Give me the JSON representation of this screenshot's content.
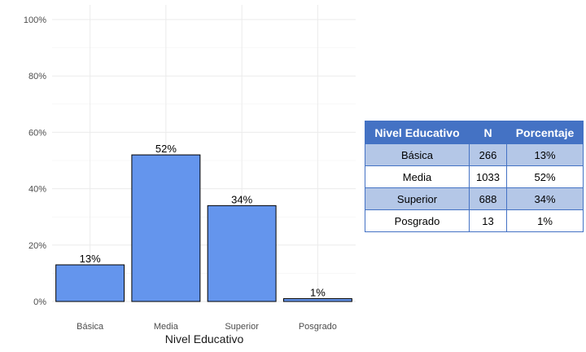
{
  "chart_data": {
    "type": "bar",
    "categories": [
      "Básica",
      "Media",
      "Superior",
      "Posgrado"
    ],
    "values": [
      13,
      52,
      34,
      1
    ],
    "data_labels": [
      "13%",
      "52%",
      "34%",
      "1%"
    ],
    "xlabel": "Nivel Educativo",
    "ylabel": "",
    "ylim": [
      0,
      100
    ],
    "y_ticks": [
      0,
      20,
      40,
      60,
      80,
      100
    ],
    "y_tick_labels": [
      "0%",
      "20%",
      "40%",
      "60%",
      "80%",
      "100%"
    ],
    "grid": true,
    "colors": {
      "bar_fill": "#6495ed",
      "bar_stroke": "#000000",
      "grid": "#ebebeb"
    }
  },
  "table": {
    "headers": [
      "Nivel Educativo",
      "N",
      "Porcentaje"
    ],
    "rows": [
      [
        "Básica",
        "266",
        "13%"
      ],
      [
        "Media",
        "1033",
        "52%"
      ],
      [
        "Superior",
        "688",
        "34%"
      ],
      [
        "Posgrado",
        "13",
        "1%"
      ]
    ],
    "colors": {
      "header_bg": "#4472c4",
      "header_text": "#ffffff",
      "stripe": "#b4c7e7",
      "border": "#4472c4"
    }
  }
}
